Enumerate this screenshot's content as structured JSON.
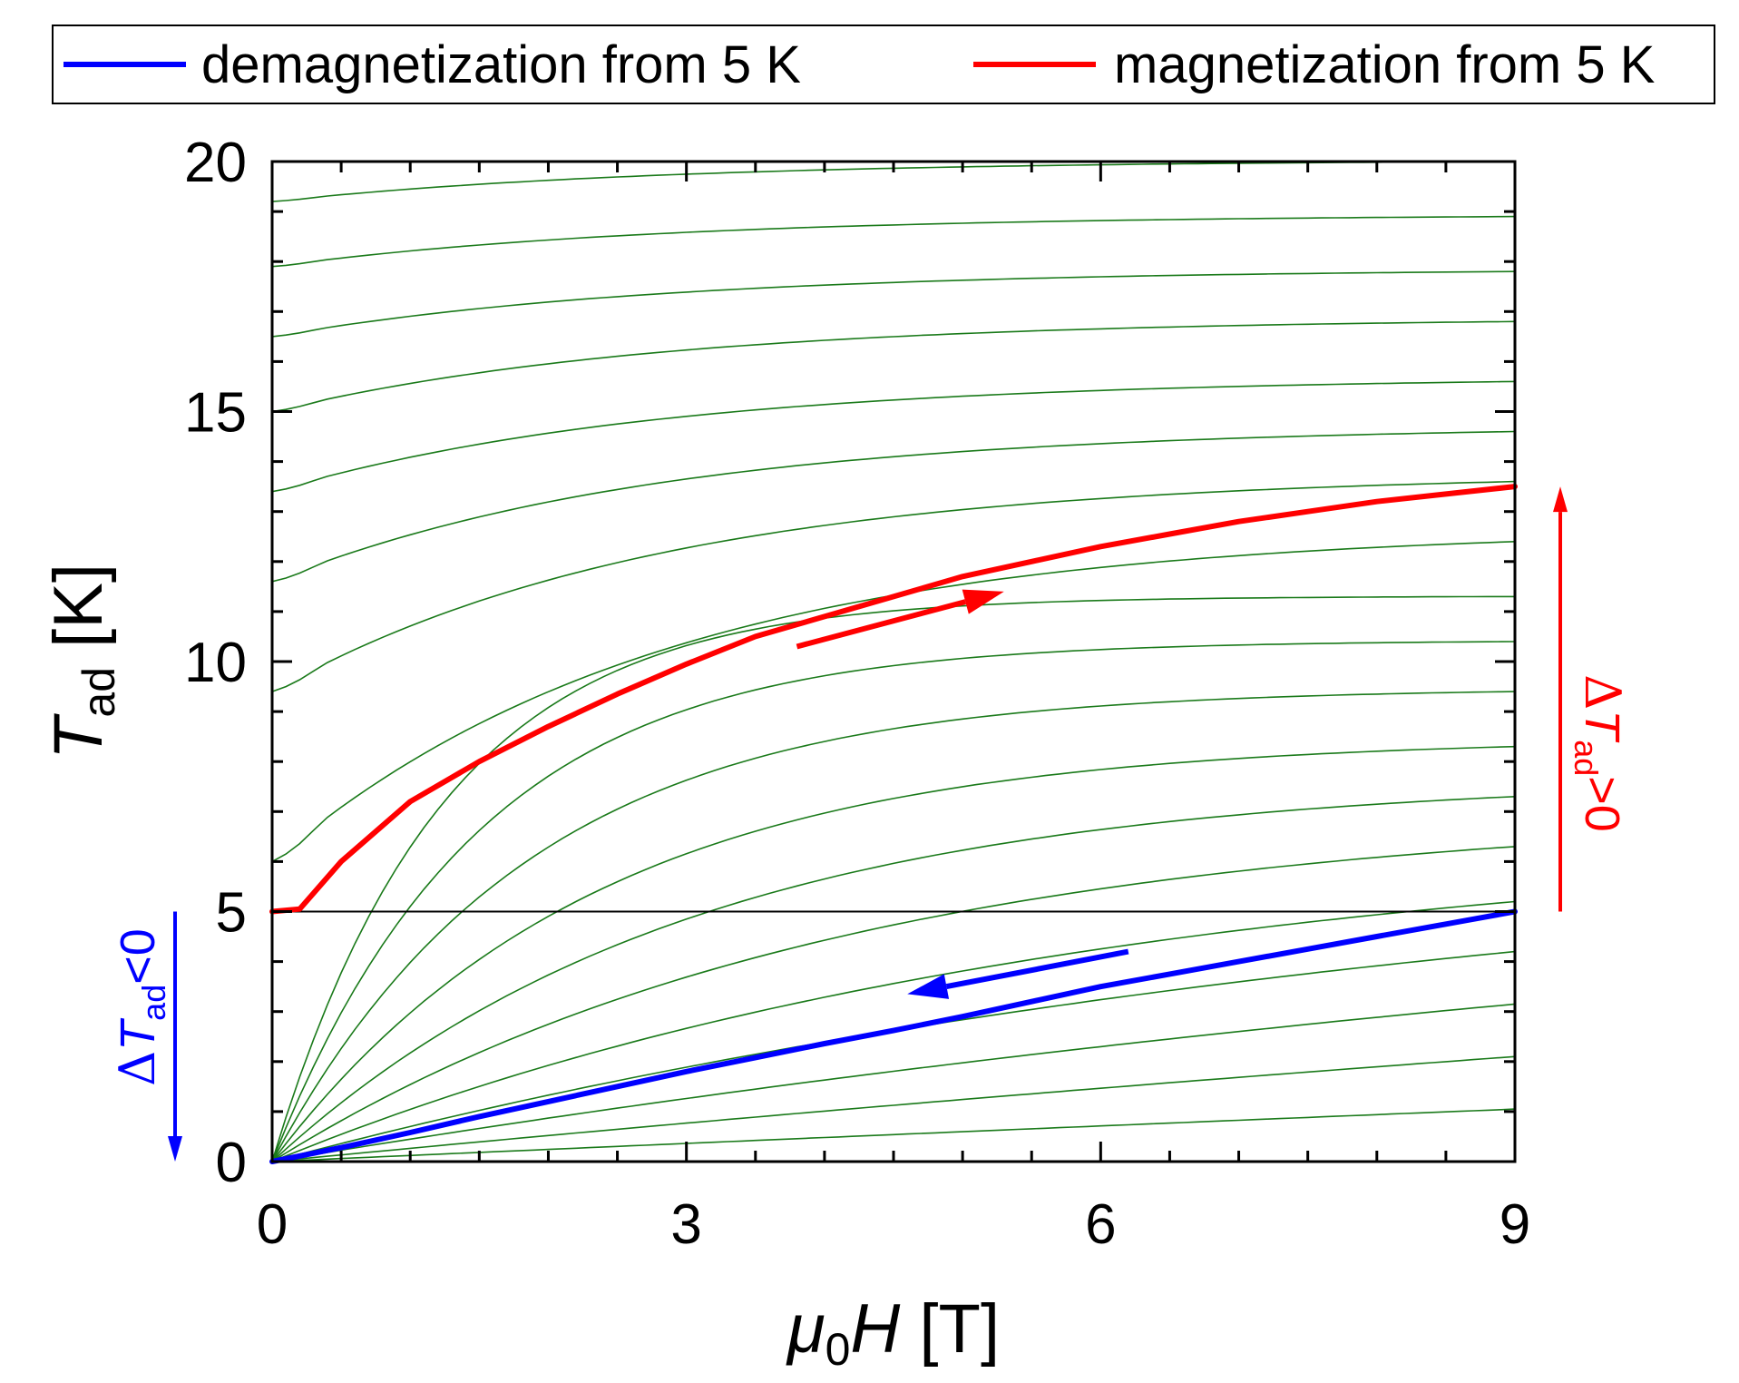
{
  "chart_data": {
    "type": "line",
    "xlabel": {
      "symbol": "μ",
      "sub": "0",
      "rest": "H",
      "unit": "[T]"
    },
    "ylabel": {
      "symbol": "T",
      "sub": "ad",
      "unit": "[K]"
    },
    "xlim": [
      0,
      9
    ],
    "ylim": [
      0,
      20
    ],
    "xticks": [
      0,
      3,
      6,
      9
    ],
    "yticks": [
      0,
      5,
      10,
      15,
      20
    ],
    "xtick_labels": [
      "0",
      "3",
      "6",
      "9"
    ],
    "ytick_labels": [
      "0",
      "5",
      "10",
      "15",
      "20"
    ],
    "legend": [
      {
        "name": "demagnetization from 5 K",
        "color": "#0000ff"
      },
      {
        "name": "magnetization from 5 K",
        "color": "#ff0000"
      }
    ],
    "series": [
      {
        "name": "demagnetization from 5 K",
        "color": "#0000ff",
        "x": [
          0,
          0.5,
          1,
          1.5,
          2,
          2.5,
          3,
          3.5,
          4,
          4.5,
          5,
          5.5,
          6,
          6.5,
          7,
          7.5,
          8,
          8.5,
          9
        ],
        "y": [
          0,
          0.28,
          0.58,
          0.9,
          1.2,
          1.5,
          1.8,
          2.08,
          2.36,
          2.62,
          2.9,
          3.2,
          3.5,
          3.75,
          4.0,
          4.25,
          4.5,
          4.75,
          5.0
        ]
      },
      {
        "name": "magnetization from 5 K",
        "color": "#ff0000",
        "x": [
          0,
          0.2,
          0.5,
          1,
          1.5,
          2,
          2.5,
          3,
          3.5,
          4,
          4.5,
          5,
          5.5,
          6,
          6.5,
          7,
          7.5,
          8,
          8.5,
          9
        ],
        "y": [
          5.0,
          5.05,
          6.0,
          7.2,
          8.0,
          8.7,
          9.35,
          9.95,
          10.5,
          10.9,
          11.3,
          11.7,
          12.0,
          12.3,
          12.55,
          12.8,
          13.0,
          13.2,
          13.35,
          13.5
        ]
      }
    ],
    "isentropes": {
      "color": "#1a7a1a",
      "count": 20,
      "start_T_at_0T": [
        0,
        0,
        0,
        0,
        0,
        0,
        0,
        0,
        0,
        0,
        0,
        0,
        6.0,
        9.4,
        11.6,
        13.4,
        15.0,
        16.5,
        17.9,
        19.2
      ],
      "end_T_at_9T": [
        0,
        1.05,
        2.1,
        3.15,
        4.2,
        5.2,
        6.3,
        7.3,
        8.3,
        9.4,
        10.4,
        11.3,
        12.4,
        13.6,
        14.6,
        15.6,
        16.8,
        17.8,
        18.9,
        20.0
      ]
    },
    "reference_line": {
      "y": 5,
      "color": "#000000"
    },
    "annotations": [
      {
        "text_delta": "Δ",
        "text_symbol": "T",
        "text_sub": "ad",
        "text_rel": ">0",
        "color": "#ff0000",
        "arrow": "up",
        "from_y": 5,
        "to_y": 13.5,
        "side": "right"
      },
      {
        "text_delta": "Δ",
        "text_symbol": "T",
        "text_sub": "ad",
        "text_rel": "<0",
        "color": "#0000ff",
        "arrow": "down",
        "from_y": 5,
        "to_y": 0,
        "side": "left"
      }
    ],
    "direction_arrows": [
      {
        "series": "magnetization from 5 K",
        "color": "#ff0000",
        "from": [
          3.8,
          10.3
        ],
        "to": [
          5.3,
          11.4
        ]
      },
      {
        "series": "demagnetization from 5 K",
        "color": "#0000ff",
        "from": [
          6.2,
          4.2
        ],
        "to": [
          4.6,
          3.35
        ]
      }
    ]
  }
}
